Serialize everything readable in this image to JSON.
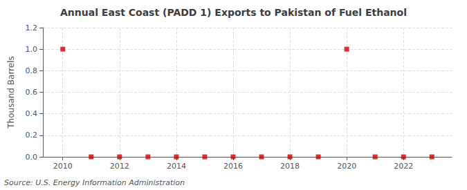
{
  "chart_data": {
    "type": "scatter",
    "title": "Annual East Coast (PADD 1) Exports to Pakistan of Fuel Ethanol",
    "ylabel": "Thousand Barrels",
    "source": "Source: U.S. Energy Information Administration",
    "x": [
      2010,
      2011,
      2012,
      2013,
      2014,
      2015,
      2016,
      2017,
      2018,
      2019,
      2020,
      2021,
      2022,
      2023
    ],
    "values": [
      1.0,
      0.0,
      0.0,
      0.0,
      0.0,
      0.0,
      0.0,
      0.0,
      0.0,
      0.0,
      1.0,
      0.0,
      0.0,
      0.0
    ],
    "color": "#cc0000",
    "marker": "square",
    "xlim": [
      2009.3,
      2023.7
    ],
    "xticks": [
      2010,
      2012,
      2014,
      2016,
      2018,
      2020,
      2022
    ],
    "ylim": [
      0.0,
      1.2
    ],
    "yticks": [
      {
        "value": 0.0,
        "label": "0.0"
      },
      0.2,
      0.4,
      0.6,
      0.8,
      {
        "value": 1.0,
        "label": "1.0"
      },
      1.2
    ],
    "grid": true
  }
}
